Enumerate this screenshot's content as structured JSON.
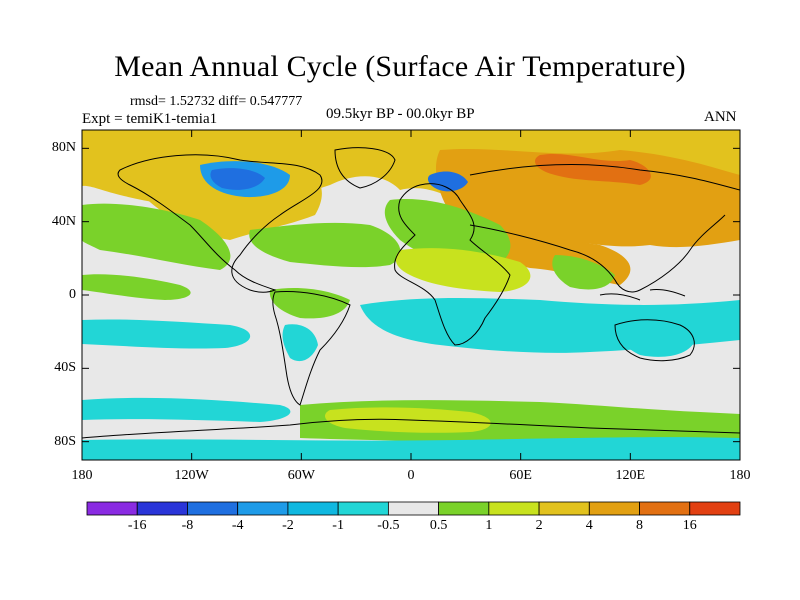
{
  "title": "Mean Annual Cycle (Surface Air Temperature)",
  "stats": "rmsd= 1.52732 diff= 0.547777",
  "experiment": "Expt = temiK1-temia1",
  "period": "09.5kyr BP - 00.0kyr BP",
  "season": "ANN",
  "lat_ticks": [
    {
      "label": "80N",
      "value": 80
    },
    {
      "label": "40N",
      "value": 40
    },
    {
      "label": "0",
      "value": 0
    },
    {
      "label": "40S",
      "value": -40
    },
    {
      "label": "80S",
      "value": -80
    }
  ],
  "lon_ticks": [
    {
      "label": "180",
      "value": -180
    },
    {
      "label": "120W",
      "value": -120
    },
    {
      "label": "60W",
      "value": -60
    },
    {
      "label": "0",
      "value": 0
    },
    {
      "label": "60E",
      "value": 60
    },
    {
      "label": "120E",
      "value": 120
    },
    {
      "label": "180",
      "value": 180
    }
  ],
  "colorbar": {
    "colors": [
      "#8a2be2",
      "#2a35d8",
      "#1f6fe0",
      "#1e9be8",
      "#10b8e0",
      "#22d6d6",
      "#e8e8e8",
      "#7ad22a",
      "#c8e21e",
      "#e2c21e",
      "#e2a012",
      "#e27012",
      "#e24012"
    ],
    "labels": [
      "-16",
      "-8",
      "-4",
      "-2",
      "-1",
      "-0.5",
      "0.5",
      "1",
      "2",
      "4",
      "8",
      "16"
    ]
  },
  "map_colors": {
    "neutral": "#e8e8e8",
    "light_green": "#7ad22a",
    "yellow_green": "#c8e21e",
    "yellow": "#e2c21e",
    "orange": "#e2a012",
    "dark_orange": "#e27012",
    "cyan": "#22d6d6",
    "aqua": "#10b8e0",
    "blue": "#1f6fe0"
  }
}
